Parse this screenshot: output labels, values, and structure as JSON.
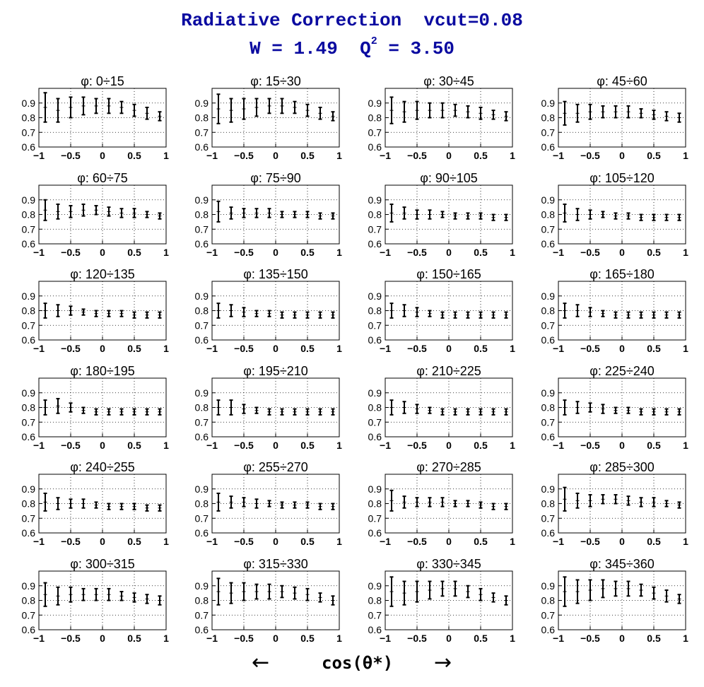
{
  "title": {
    "line1": "Radiative Correction  vcut=0.08",
    "line2_prefix": "W = 1.49  Q",
    "line2_sup": "2",
    "line2_suffix": " = 3.50"
  },
  "footer": {
    "xlabel": "cos(θ*)",
    "arrow_left": "←",
    "arrow_right": "→"
  },
  "axes": {
    "xlim": [
      -1,
      1
    ],
    "ylim": [
      0.6,
      1.0
    ],
    "xticks": [
      -1,
      -0.5,
      0,
      0.5,
      1
    ],
    "xtick_labels": [
      "−1",
      "−0.5",
      "0",
      "0.5",
      "1"
    ],
    "yticks": [
      0.6,
      0.7,
      0.8,
      0.9
    ],
    "ytick_labels": [
      "0.6",
      "0.7",
      "0.8",
      "0.9"
    ],
    "grid": true
  },
  "chart_data": {
    "type": "scatter",
    "x": [
      -0.9,
      -0.7,
      -0.5,
      -0.3,
      -0.1,
      0.1,
      0.3,
      0.5,
      0.7,
      0.9
    ],
    "panels": [
      {
        "title": "φ:  0÷15",
        "y": [
          0.87,
          0.85,
          0.87,
          0.88,
          0.88,
          0.88,
          0.87,
          0.85,
          0.83,
          0.81
        ],
        "err": [
          0.1,
          0.08,
          0.07,
          0.06,
          0.05,
          0.05,
          0.04,
          0.04,
          0.04,
          0.03
        ]
      },
      {
        "title": "φ:  15÷30",
        "y": [
          0.86,
          0.85,
          0.86,
          0.87,
          0.88,
          0.88,
          0.87,
          0.85,
          0.83,
          0.81
        ],
        "err": [
          0.1,
          0.08,
          0.07,
          0.06,
          0.05,
          0.05,
          0.04,
          0.04,
          0.04,
          0.03
        ]
      },
      {
        "title": "φ:  30÷45",
        "y": [
          0.85,
          0.84,
          0.85,
          0.85,
          0.85,
          0.85,
          0.84,
          0.83,
          0.82,
          0.81
        ],
        "err": [
          0.09,
          0.07,
          0.06,
          0.05,
          0.05,
          0.04,
          0.04,
          0.04,
          0.03,
          0.03
        ]
      },
      {
        "title": "φ:  45÷60",
        "y": [
          0.83,
          0.83,
          0.84,
          0.84,
          0.84,
          0.84,
          0.83,
          0.82,
          0.81,
          0.8
        ],
        "err": [
          0.08,
          0.06,
          0.05,
          0.04,
          0.04,
          0.04,
          0.03,
          0.03,
          0.03,
          0.03
        ]
      },
      {
        "title": "φ:  60÷75",
        "y": [
          0.83,
          0.82,
          0.82,
          0.83,
          0.83,
          0.82,
          0.81,
          0.81,
          0.8,
          0.79
        ],
        "err": [
          0.07,
          0.05,
          0.04,
          0.04,
          0.03,
          0.03,
          0.03,
          0.03,
          0.02,
          0.02
        ]
      },
      {
        "title": "φ:  75÷90",
        "y": [
          0.82,
          0.81,
          0.81,
          0.81,
          0.81,
          0.8,
          0.8,
          0.8,
          0.79,
          0.79
        ],
        "err": [
          0.07,
          0.04,
          0.03,
          0.03,
          0.03,
          0.02,
          0.02,
          0.02,
          0.02,
          0.02
        ]
      },
      {
        "title": "φ:  90÷105",
        "y": [
          0.81,
          0.81,
          0.8,
          0.8,
          0.8,
          0.79,
          0.79,
          0.79,
          0.78,
          0.78
        ],
        "err": [
          0.06,
          0.04,
          0.03,
          0.03,
          0.02,
          0.02,
          0.02,
          0.02,
          0.02,
          0.02
        ]
      },
      {
        "title": "φ:  105÷120",
        "y": [
          0.81,
          0.8,
          0.8,
          0.8,
          0.79,
          0.79,
          0.78,
          0.78,
          0.78,
          0.78
        ],
        "err": [
          0.06,
          0.04,
          0.03,
          0.02,
          0.02,
          0.02,
          0.02,
          0.02,
          0.02,
          0.02
        ]
      },
      {
        "title": "φ: 120÷135",
        "y": [
          0.8,
          0.8,
          0.8,
          0.79,
          0.78,
          0.78,
          0.78,
          0.77,
          0.77,
          0.77
        ],
        "err": [
          0.05,
          0.04,
          0.03,
          0.02,
          0.02,
          0.02,
          0.02,
          0.02,
          0.02,
          0.02
        ]
      },
      {
        "title": "φ: 135÷150",
        "y": [
          0.8,
          0.8,
          0.79,
          0.78,
          0.78,
          0.77,
          0.77,
          0.77,
          0.77,
          0.77
        ],
        "err": [
          0.05,
          0.04,
          0.03,
          0.02,
          0.02,
          0.02,
          0.02,
          0.02,
          0.02,
          0.02
        ]
      },
      {
        "title": "φ: 150÷165",
        "y": [
          0.8,
          0.8,
          0.79,
          0.78,
          0.77,
          0.77,
          0.77,
          0.77,
          0.77,
          0.77
        ],
        "err": [
          0.05,
          0.04,
          0.03,
          0.02,
          0.02,
          0.02,
          0.02,
          0.02,
          0.02,
          0.02
        ]
      },
      {
        "title": "φ: 165÷180",
        "y": [
          0.8,
          0.8,
          0.79,
          0.78,
          0.77,
          0.77,
          0.77,
          0.77,
          0.77,
          0.77
        ],
        "err": [
          0.05,
          0.04,
          0.03,
          0.02,
          0.02,
          0.02,
          0.02,
          0.02,
          0.02,
          0.02
        ]
      },
      {
        "title": "φ: 180÷195",
        "y": [
          0.8,
          0.81,
          0.8,
          0.78,
          0.77,
          0.77,
          0.77,
          0.77,
          0.77,
          0.77
        ],
        "err": [
          0.05,
          0.05,
          0.03,
          0.02,
          0.02,
          0.02,
          0.02,
          0.02,
          0.02,
          0.02
        ]
      },
      {
        "title": "φ: 195÷210",
        "y": [
          0.8,
          0.8,
          0.79,
          0.78,
          0.77,
          0.77,
          0.77,
          0.77,
          0.77,
          0.77
        ],
        "err": [
          0.05,
          0.05,
          0.03,
          0.02,
          0.02,
          0.02,
          0.02,
          0.02,
          0.02,
          0.02
        ]
      },
      {
        "title": "φ: 210÷225",
        "y": [
          0.8,
          0.8,
          0.79,
          0.78,
          0.77,
          0.77,
          0.77,
          0.77,
          0.77,
          0.77
        ],
        "err": [
          0.05,
          0.04,
          0.03,
          0.02,
          0.02,
          0.02,
          0.02,
          0.02,
          0.02,
          0.02
        ]
      },
      {
        "title": "φ: 225÷240",
        "y": [
          0.8,
          0.8,
          0.8,
          0.79,
          0.78,
          0.78,
          0.77,
          0.77,
          0.77,
          0.77
        ],
        "err": [
          0.05,
          0.04,
          0.03,
          0.03,
          0.02,
          0.02,
          0.02,
          0.02,
          0.02,
          0.02
        ]
      },
      {
        "title": "φ: 240÷255",
        "y": [
          0.81,
          0.8,
          0.8,
          0.8,
          0.79,
          0.78,
          0.78,
          0.78,
          0.77,
          0.77
        ],
        "err": [
          0.06,
          0.04,
          0.03,
          0.03,
          0.02,
          0.02,
          0.02,
          0.02,
          0.02,
          0.02
        ]
      },
      {
        "title": "φ: 255÷270",
        "y": [
          0.81,
          0.81,
          0.81,
          0.8,
          0.8,
          0.79,
          0.79,
          0.79,
          0.78,
          0.78
        ],
        "err": [
          0.06,
          0.04,
          0.03,
          0.03,
          0.02,
          0.02,
          0.02,
          0.02,
          0.02,
          0.02
        ]
      },
      {
        "title": "φ: 270÷285",
        "y": [
          0.82,
          0.81,
          0.81,
          0.81,
          0.81,
          0.8,
          0.8,
          0.79,
          0.78,
          0.78
        ],
        "err": [
          0.07,
          0.04,
          0.03,
          0.03,
          0.03,
          0.02,
          0.02,
          0.02,
          0.02,
          0.02
        ]
      },
      {
        "title": "φ: 285÷300",
        "y": [
          0.83,
          0.82,
          0.82,
          0.83,
          0.83,
          0.82,
          0.81,
          0.81,
          0.8,
          0.79
        ],
        "err": [
          0.08,
          0.05,
          0.04,
          0.03,
          0.03,
          0.03,
          0.03,
          0.03,
          0.02,
          0.02
        ]
      },
      {
        "title": "φ: 300÷315",
        "y": [
          0.84,
          0.83,
          0.84,
          0.84,
          0.84,
          0.84,
          0.83,
          0.82,
          0.81,
          0.8
        ],
        "err": [
          0.08,
          0.06,
          0.05,
          0.04,
          0.04,
          0.04,
          0.03,
          0.03,
          0.03,
          0.03
        ]
      },
      {
        "title": "φ: 315÷330",
        "y": [
          0.86,
          0.85,
          0.86,
          0.86,
          0.86,
          0.86,
          0.85,
          0.84,
          0.82,
          0.8
        ],
        "err": [
          0.09,
          0.07,
          0.06,
          0.05,
          0.05,
          0.04,
          0.04,
          0.04,
          0.03,
          0.03
        ]
      },
      {
        "title": "φ: 330÷345",
        "y": [
          0.86,
          0.85,
          0.86,
          0.87,
          0.88,
          0.88,
          0.86,
          0.84,
          0.82,
          0.8
        ],
        "err": [
          0.1,
          0.08,
          0.07,
          0.06,
          0.05,
          0.05,
          0.04,
          0.04,
          0.03,
          0.03
        ]
      },
      {
        "title": "φ: 345÷360",
        "y": [
          0.86,
          0.86,
          0.87,
          0.88,
          0.88,
          0.88,
          0.87,
          0.85,
          0.83,
          0.81
        ],
        "err": [
          0.1,
          0.08,
          0.07,
          0.06,
          0.05,
          0.05,
          0.04,
          0.04,
          0.04,
          0.03
        ]
      }
    ]
  }
}
